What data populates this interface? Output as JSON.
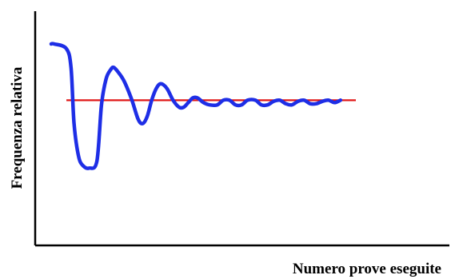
{
  "chart_data": {
    "type": "line",
    "title": "",
    "xlabel": "Numero prove eseguite",
    "ylabel": "Frequenza relativa",
    "xlim": [
      0,
      100
    ],
    "ylim": [
      0,
      100
    ],
    "grid": false,
    "colors": {
      "curve": "#1e2ee6",
      "reference": "#e01616",
      "axes": "#000000"
    },
    "reference_line": {
      "y": 62,
      "x": [
        5,
        100
      ]
    },
    "series": [
      {
        "x": [
          0,
          1,
          5,
          6.5,
          7.5,
          9,
          10.5,
          12.5,
          15,
          16.5,
          18,
          19.5,
          20.5,
          22,
          24,
          26.5,
          28.5,
          30,
          31.5,
          33,
          34.5,
          36,
          38,
          40,
          42,
          43.5,
          45,
          46.5,
          48,
          50,
          52,
          54.5,
          56.5,
          58.5,
          60.5,
          62.5,
          64.5,
          67,
          69,
          71,
          73,
          75,
          77,
          79,
          81,
          83,
          85,
          87,
          89,
          91,
          93,
          95
        ],
        "values": [
          86,
          86,
          84,
          76,
          52,
          38,
          34,
          33,
          36,
          60,
          71,
          75,
          76,
          74,
          70,
          62,
          54,
          52,
          55,
          62,
          67,
          69,
          67,
          62,
          59,
          59,
          61,
          63,
          63,
          61,
          60,
          60,
          62,
          62,
          60,
          60,
          62,
          62,
          60,
          60,
          61.5,
          62,
          60.5,
          60,
          61.5,
          62,
          60.5,
          60.5,
          61.5,
          62,
          61,
          62
        ]
      }
    ]
  }
}
